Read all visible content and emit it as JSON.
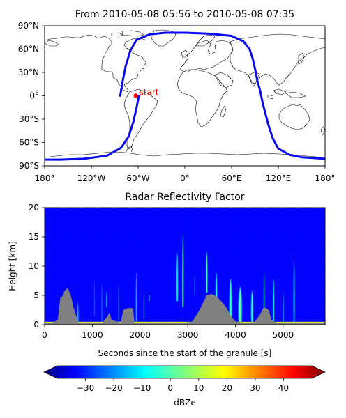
{
  "chart_data": [
    {
      "type": "line",
      "title": "From 2010-05-08 05:56 to 2010-05-08 07:35",
      "xlim": [
        -180,
        180
      ],
      "ylim": [
        -90,
        90
      ],
      "xticks": [
        {
          "value": -180,
          "label": "180°"
        },
        {
          "value": -120,
          "label": "120°W"
        },
        {
          "value": -60,
          "label": "60°W"
        },
        {
          "value": 0,
          "label": "0°"
        },
        {
          "value": 60,
          "label": "60°E"
        },
        {
          "value": 120,
          "label": "120°E"
        },
        {
          "value": 180,
          "label": "180°"
        }
      ],
      "yticks": [
        {
          "value": 90,
          "label": "90°N"
        },
        {
          "value": 60,
          "label": "60°N"
        },
        {
          "value": 30,
          "label": "30°N"
        },
        {
          "value": 0,
          "label": "0°"
        },
        {
          "value": -30,
          "label": "30°S"
        },
        {
          "value": -60,
          "label": "60°S"
        },
        {
          "value": -90,
          "label": "90°S"
        }
      ],
      "series": [
        {
          "color": "#0a0af0",
          "x": [
            -83,
            -80,
            -76,
            -70,
            -62,
            -45,
            -25,
            0,
            30,
            60,
            75,
            83,
            87,
            90,
            93,
            97,
            100,
            104,
            108,
            113,
            120,
            135,
            150,
            165,
            180
          ],
          "y": [
            0,
            18,
            38,
            58,
            72,
            79,
            81,
            81,
            80,
            77,
            70,
            60,
            48,
            35,
            20,
            5,
            -10,
            -25,
            -40,
            -55,
            -68,
            -76,
            -79,
            -80,
            -81
          ]
        },
        {
          "color": "#0a0af0",
          "x": [
            -59,
            -62,
            -66,
            -72,
            -82,
            -100,
            -130,
            -160,
            -180
          ],
          "y": [
            0,
            -15,
            -33,
            -52,
            -67,
            -77,
            -81,
            -82,
            -82
          ]
        }
      ],
      "start_marker": {
        "lon": -63,
        "lat": 0,
        "label": "start",
        "color": "#ff0000"
      }
    },
    {
      "type": "heatmap",
      "title": "Radar Reflectivity Factor",
      "xlabel": "Seconds since the start of the granule [s]",
      "ylabel": "Height [km]",
      "xlim": [
        0,
        5880
      ],
      "ylim": [
        0,
        20
      ],
      "xticks": [
        0,
        1000,
        2000,
        3000,
        4000,
        5000
      ],
      "yticks": [
        0,
        5,
        10,
        15,
        20
      ],
      "colorbar": {
        "label": "dBZe",
        "range": [
          -40,
          50
        ],
        "ticks": [
          {
            "value": -30,
            "label": "−30"
          },
          {
            "value": -20,
            "label": "−20"
          },
          {
            "value": -10,
            "label": "−10"
          },
          {
            "value": 0,
            "label": "0"
          },
          {
            "value": 10,
            "label": "10"
          },
          {
            "value": 20,
            "label": "20"
          },
          {
            "value": 30,
            "label": "30"
          },
          {
            "value": 40,
            "label": "40"
          }
        ],
        "colormap": "jet"
      },
      "background_color": "#0000ff",
      "terrain_color": "#808080",
      "terrain_profile": {
        "x": [
          0,
          150,
          280,
          330,
          390,
          420,
          480,
          520,
          560,
          600,
          680,
          720,
          800,
          1000,
          1200,
          1280,
          1360,
          1400,
          1600,
          1650,
          1750,
          1850,
          1880,
          2000,
          2400,
          2700,
          2850,
          3100,
          3250,
          3400,
          3500,
          3600,
          3700,
          3800,
          3900,
          4000,
          4200,
          4400,
          4500,
          4600,
          4700,
          4750,
          4900,
          5880
        ],
        "y": [
          0.3,
          0.3,
          0.8,
          4.5,
          5.0,
          5.8,
          6.2,
          5.5,
          4.5,
          3.0,
          1.0,
          0.3,
          0.2,
          0.2,
          0.2,
          1.0,
          2.0,
          0.8,
          0.3,
          2.5,
          2.8,
          2.8,
          0.3,
          0.2,
          0.2,
          0.2,
          0.2,
          0.5,
          2.5,
          5.0,
          5.2,
          4.8,
          4.0,
          3.0,
          1.5,
          0.5,
          0.3,
          0.4,
          1.5,
          3.0,
          2.5,
          0.8,
          0.2,
          0.2
        ]
      },
      "cloud_features": [
        {
          "x": 700,
          "base": 0.3,
          "top": 4.0,
          "width": 40,
          "dbz": -5
        },
        {
          "x": 1050,
          "base": 1.5,
          "top": 8.0,
          "width": 30,
          "dbz": -15
        },
        {
          "x": 1200,
          "base": 0.3,
          "top": 7.5,
          "width": 40,
          "dbz": -15
        },
        {
          "x": 1300,
          "base": 3.0,
          "top": 6.0,
          "width": 50,
          "dbz": -10
        },
        {
          "x": 1550,
          "base": 0.3,
          "top": 7.5,
          "width": 40,
          "dbz": -15
        },
        {
          "x": 1920,
          "base": 0.5,
          "top": 9.5,
          "width": 50,
          "dbz": -10
        },
        {
          "x": 2080,
          "base": 1.0,
          "top": 6.0,
          "width": 40,
          "dbz": -15
        },
        {
          "x": 2200,
          "base": 4.0,
          "top": 5.5,
          "width": 60,
          "dbz": -20
        },
        {
          "x": 2780,
          "base": 4.0,
          "top": 12.5,
          "width": 70,
          "dbz": -5
        },
        {
          "x": 2900,
          "base": 3.0,
          "top": 15.5,
          "width": 60,
          "dbz": 0
        },
        {
          "x": 3150,
          "base": 5.0,
          "top": 9.0,
          "width": 50,
          "dbz": -10
        },
        {
          "x": 3400,
          "base": 5.5,
          "top": 12.5,
          "width": 60,
          "dbz": 0
        },
        {
          "x": 3600,
          "base": 3.0,
          "top": 9.0,
          "width": 80,
          "dbz": -5
        },
        {
          "x": 3900,
          "base": 0.5,
          "top": 8.0,
          "width": 100,
          "dbz": 0
        },
        {
          "x": 4100,
          "base": 0.5,
          "top": 6.5,
          "width": 120,
          "dbz": 5
        },
        {
          "x": 4350,
          "base": 0.5,
          "top": 6.0,
          "width": 80,
          "dbz": 0
        },
        {
          "x": 4600,
          "base": 1.0,
          "top": 9.0,
          "width": 50,
          "dbz": -5
        },
        {
          "x": 4800,
          "base": 0.5,
          "top": 8.0,
          "width": 60,
          "dbz": -5
        },
        {
          "x": 5000,
          "base": 0.3,
          "top": 6.0,
          "width": 60,
          "dbz": -10
        },
        {
          "x": 5230,
          "base": 0.3,
          "top": 12.0,
          "width": 50,
          "dbz": 0
        }
      ]
    }
  ]
}
